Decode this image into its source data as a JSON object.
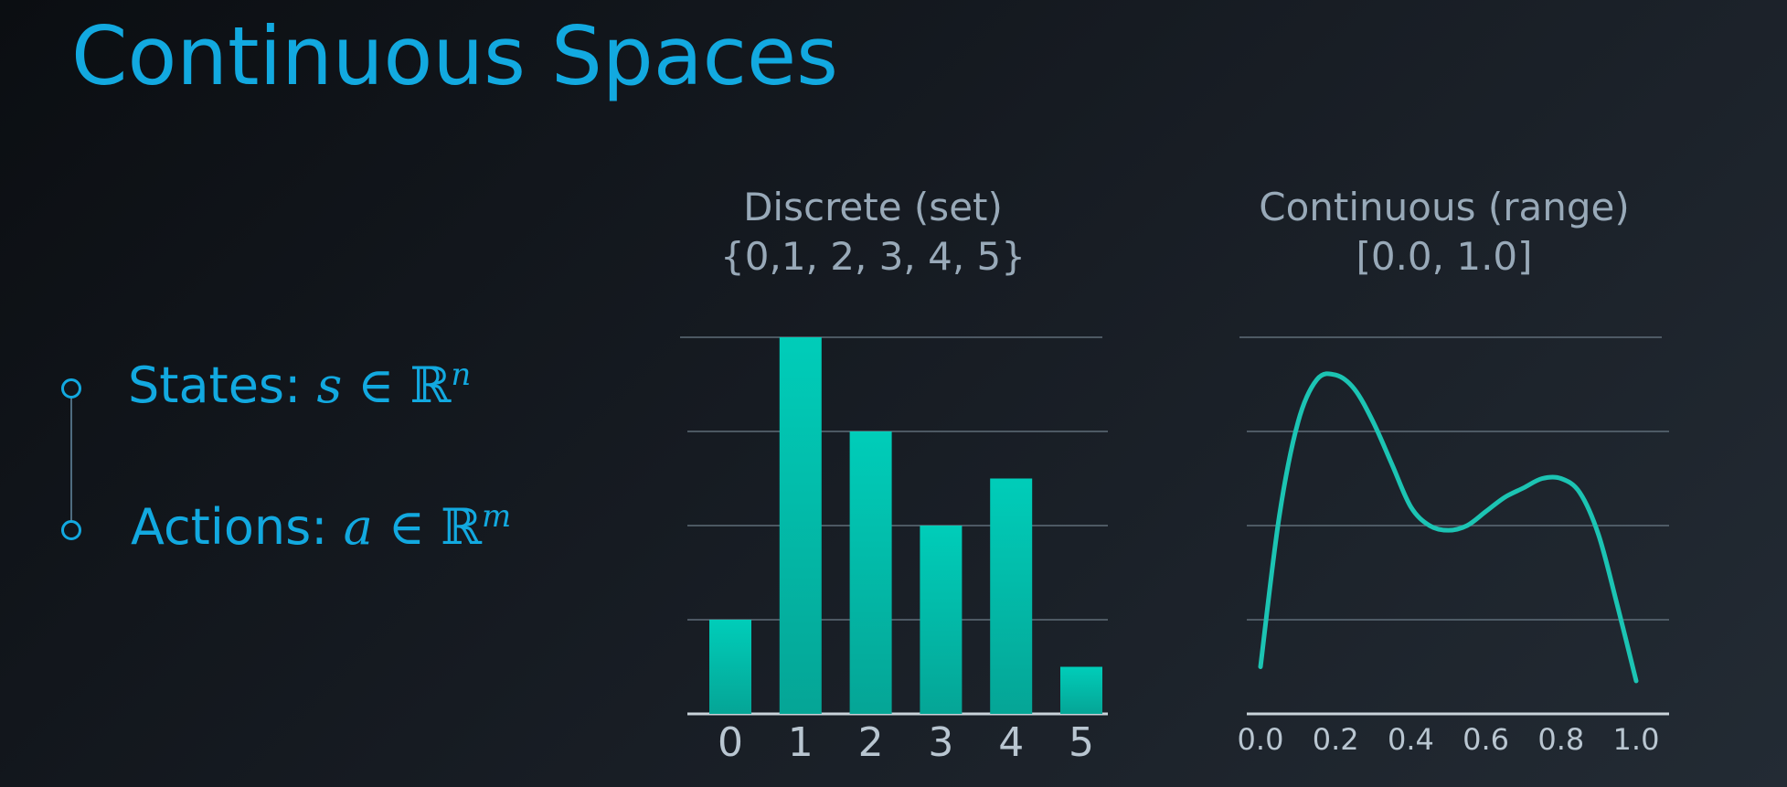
{
  "slide": {
    "title": "Continuous Spaces"
  },
  "bullets": [
    {
      "label": "States:",
      "math_var": "s",
      "math_op": "∈",
      "math_set": "ℝ",
      "math_exp": "n"
    },
    {
      "label": "Actions:",
      "math_var": "a",
      "math_op": "∈",
      "math_set": "ℝ",
      "math_exp": "m"
    }
  ],
  "colors": {
    "title": "#12a9e0",
    "bar_top": "#00cdb9",
    "bar_bottom": "#05a596",
    "curve": "#1cc4b3",
    "grid": "#5f6d78",
    "axis": "#c9d3da"
  },
  "chart_data": [
    {
      "type": "bar",
      "title": "Discrete (set)",
      "subtitle": "{0,1, 2, 3, 4, 5}",
      "categories": [
        "0",
        "1",
        "2",
        "3",
        "4",
        "5"
      ],
      "values": [
        2,
        8,
        6,
        4,
        5,
        1
      ],
      "ylim": [
        0,
        8
      ],
      "grid": true
    },
    {
      "type": "line",
      "title": "Continuous (range)",
      "subtitle": "[0.0, 1.0]",
      "x": [
        0.0,
        0.05,
        0.1,
        0.15,
        0.2,
        0.25,
        0.3,
        0.35,
        0.4,
        0.45,
        0.5,
        0.55,
        0.6,
        0.65,
        0.7,
        0.75,
        0.8,
        0.85,
        0.9,
        0.95,
        1.0
      ],
      "y": [
        1.0,
        4.2,
        6.2,
        7.1,
        7.2,
        6.9,
        6.2,
        5.3,
        4.4,
        4.0,
        3.9,
        4.0,
        4.3,
        4.6,
        4.8,
        5.0,
        5.0,
        4.7,
        3.8,
        2.3,
        0.7
      ],
      "xticks": [
        "0.0",
        "0.2",
        "0.4",
        "0.6",
        "0.8",
        "1.0"
      ],
      "ylim": [
        0,
        8
      ],
      "grid": true
    }
  ]
}
